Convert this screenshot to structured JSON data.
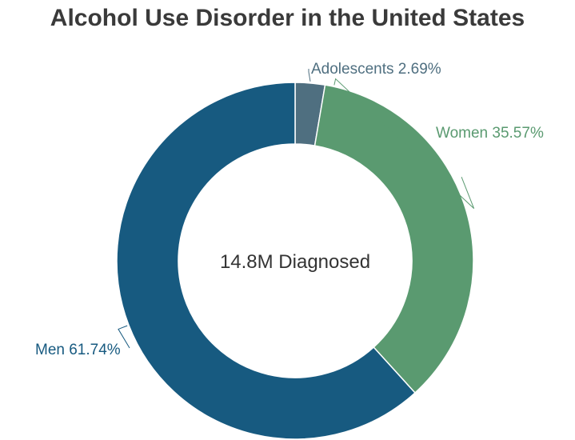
{
  "chart_data": {
    "type": "pie",
    "title": "Alcohol Use Disorder in the United States",
    "center_text": "14.8M Diagnosed",
    "donut": true,
    "slices": [
      {
        "name": "Adolescents",
        "value": 2.69,
        "label": "Adolescents 2.69%",
        "color": "#4f6f80"
      },
      {
        "name": "Women",
        "value": 35.57,
        "label": "Women 35.57%",
        "color": "#5a9a70"
      },
      {
        "name": "Men",
        "value": 61.74,
        "label": "Men 61.74%",
        "color": "#175a80"
      }
    ]
  }
}
